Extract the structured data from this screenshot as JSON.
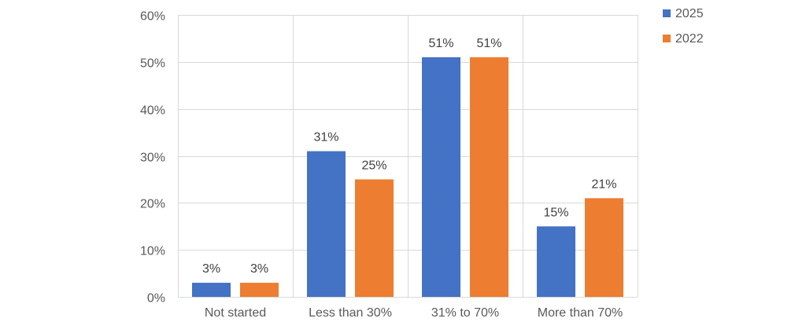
{
  "chart_data": {
    "type": "bar",
    "categories": [
      "Not started",
      "Less than 30%",
      "31% to 70%",
      "More than 70%"
    ],
    "series": [
      {
        "name": "2025",
        "color": "#4472C4",
        "values": [
          3,
          31,
          51,
          15
        ],
        "labels": [
          "3%",
          "31%",
          "51%",
          "15%"
        ]
      },
      {
        "name": "2022",
        "color": "#ED7D31",
        "values": [
          3,
          25,
          51,
          21
        ],
        "labels": [
          "3%",
          "25%",
          "51%",
          "21%"
        ]
      }
    ],
    "ylim": [
      0,
      60
    ],
    "y_ticks": [
      0,
      10,
      20,
      30,
      40,
      50,
      60
    ],
    "y_tick_labels": [
      "0%",
      "10%",
      "20%",
      "30%",
      "40%",
      "50%",
      "60%"
    ],
    "grid": true,
    "legend_position": "top-right",
    "title": "",
    "xlabel": "",
    "ylabel": ""
  }
}
